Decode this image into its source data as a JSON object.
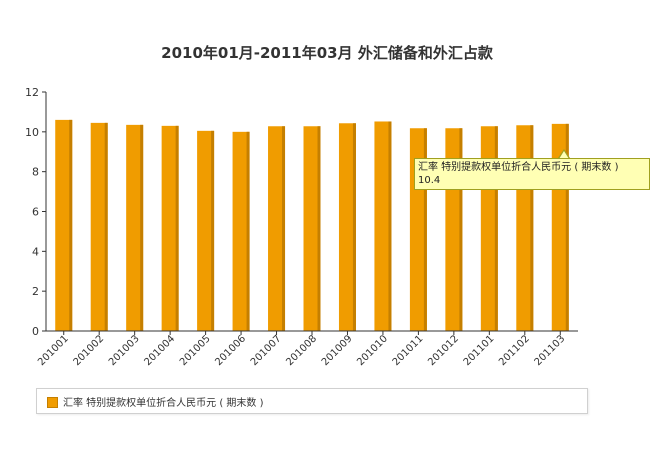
{
  "chart_data": {
    "type": "bar",
    "title": "2010年01月-2011年03月 外汇储备和外汇占款",
    "categories": [
      "201001",
      "201002",
      "201003",
      "201004",
      "201005",
      "201006",
      "201007",
      "201008",
      "201009",
      "201010",
      "201011",
      "201012",
      "201101",
      "201102",
      "201103"
    ],
    "series": [
      {
        "name": "汇率 特别提款权单位折合人民币元 ( 期末数 )",
        "values": [
          10.6,
          10.45,
          10.35,
          10.3,
          10.05,
          10.0,
          10.28,
          10.28,
          10.43,
          10.52,
          10.18,
          10.18,
          10.28,
          10.33,
          10.4
        ]
      }
    ],
    "ylim": [
      0,
      12
    ],
    "yticks": [
      0,
      2,
      4,
      6,
      8,
      10,
      12
    ],
    "xlabel": "",
    "ylabel": "",
    "grid": false,
    "legend_position": "bottom",
    "colors": {
      "bar": "#f09c00",
      "bar_shade": "#c57f00",
      "axis": "#333333"
    }
  },
  "tooltip": {
    "label": "汇率 特别提款权单位折合人民币元 ( 期末数 )",
    "value": "10.4"
  }
}
